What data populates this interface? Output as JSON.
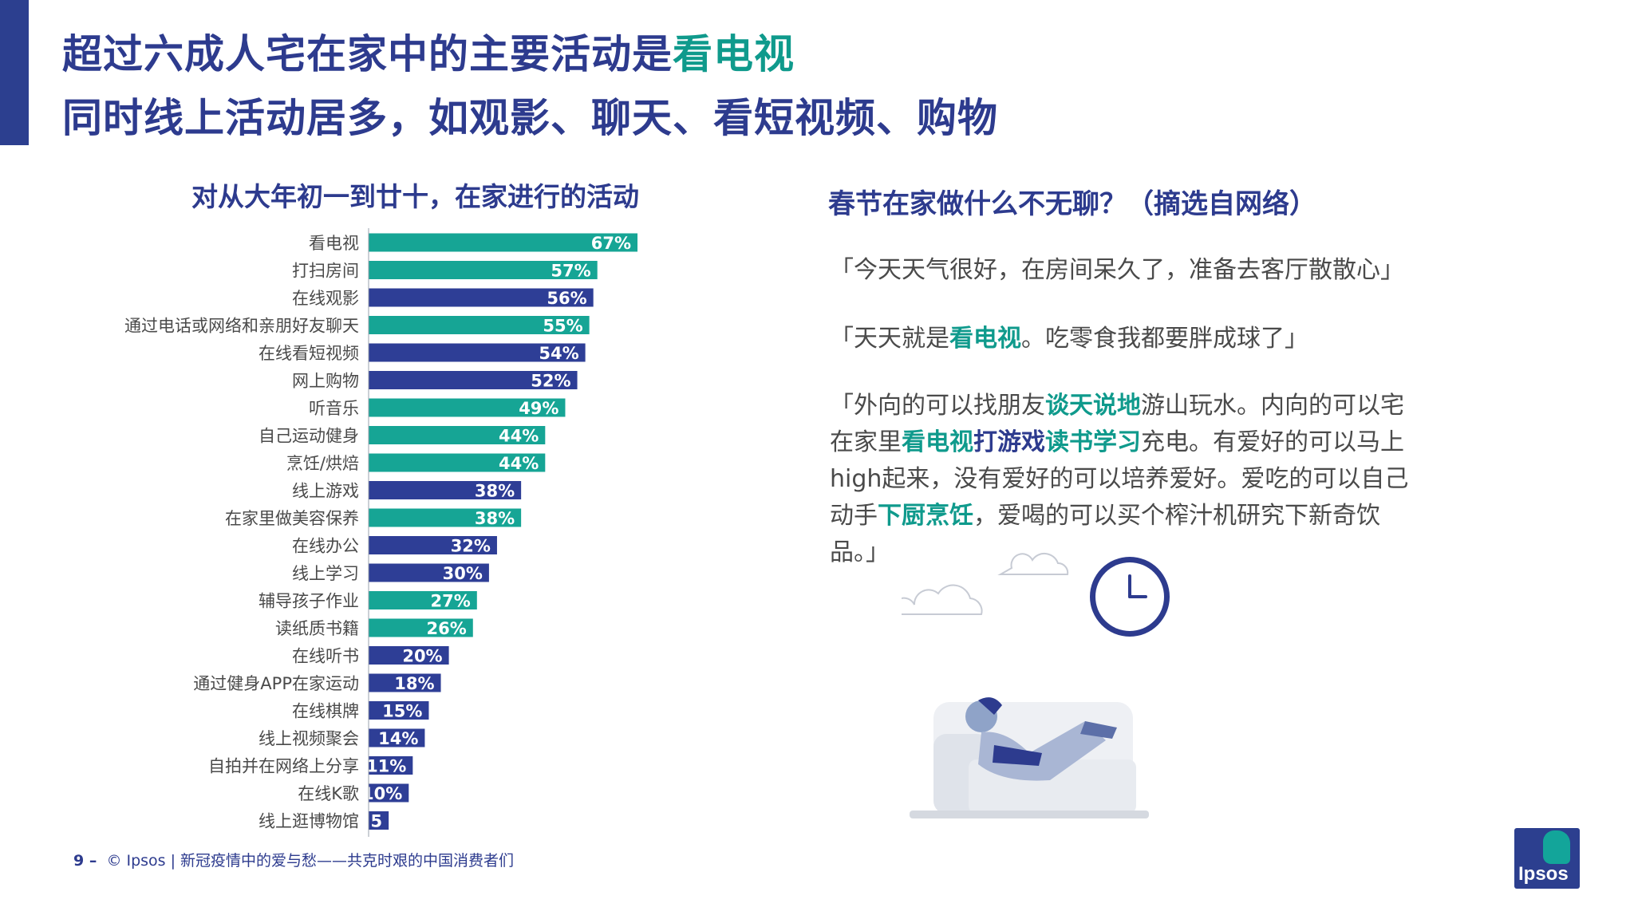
{
  "page": {
    "title_line1_main": "超过六成人宅在家中的主要活动是",
    "title_line1_highlight": "看电视",
    "title_line2": "同时线上活动居多，如观影、聊天、看短视频、购物"
  },
  "colors": {
    "navy": "#2d3b8e",
    "teal": "#0f9a8c",
    "bar_navy": "#2e3e96",
    "bar_teal": "#16a595"
  },
  "chart_data": {
    "type": "bar",
    "orientation": "horizontal",
    "title": "对从大年初一到廿十，在家进行的活动",
    "categories": [
      "看电视",
      "打扫房间",
      "在线观影",
      "通过电话或网络和亲朋好友聊天",
      "在线看短视频",
      "网上购物",
      "听音乐",
      "自己运动健身",
      "烹饪/烘焙",
      "线上游戏",
      "在家里做美容保养",
      "在线办公",
      "线上学习",
      "辅导孩子作业",
      "读纸质书籍",
      "在线听书",
      "通过健身APP在家运动",
      "在线棋牌",
      "线上视频聚会",
      "自拍并在网络上分享",
      "在线K歌",
      "线上逛博物馆"
    ],
    "values": [
      67,
      57,
      56,
      55,
      54,
      52,
      49,
      44,
      44,
      38,
      38,
      32,
      30,
      27,
      26,
      20,
      18,
      15,
      14,
      11,
      10,
      5
    ],
    "value_labels": [
      "67%",
      "57%",
      "56%",
      "55%",
      "54%",
      "52%",
      "49%",
      "44%",
      "44%",
      "38%",
      "38%",
      "32%",
      "30%",
      "27%",
      "26%",
      "20%",
      "18%",
      "15%",
      "14%",
      "11%",
      "10%",
      "5"
    ],
    "bar_colors": [
      "teal",
      "teal",
      "navy",
      "teal",
      "navy",
      "navy",
      "teal",
      "teal",
      "teal",
      "navy",
      "teal",
      "navy",
      "navy",
      "teal",
      "teal",
      "navy",
      "navy",
      "navy",
      "navy",
      "navy",
      "navy",
      "navy"
    ],
    "xlim": [
      0,
      67
    ],
    "grid": false,
    "legend": "none"
  },
  "quotes": {
    "title": "春节在家做什么不无聊？（摘选自网络）",
    "q1": "「今天天气很好，在房间呆久了，准备去客厅散散心」",
    "q2_pre": "「天天就是",
    "q2_hl": "看电视",
    "q2_post": "。吃零食我都要胖成球了」",
    "q3_a": "「外向的可以找朋友",
    "q3_b": "谈天说地",
    "q3_c": "游山玩水。内向的可以宅在家里",
    "q3_d": "看电视",
    "q3_e": "打游戏",
    "q3_f": "读书学习",
    "q3_g": "充电。有爱好的可以马上high起来，没有爱好的可以培养爱好。爱吃的可以自己动手",
    "q3_h": "下厨烹饪",
    "q3_i": "，爱喝的可以买个榨汁机研究下新奇饮品。」"
  },
  "footer": {
    "page_num": "9 –",
    "text": "© Ipsos | 新冠疫情中的爱与愁——共克时艰的中国消费者们"
  },
  "logo": {
    "text": "Ipsos"
  }
}
